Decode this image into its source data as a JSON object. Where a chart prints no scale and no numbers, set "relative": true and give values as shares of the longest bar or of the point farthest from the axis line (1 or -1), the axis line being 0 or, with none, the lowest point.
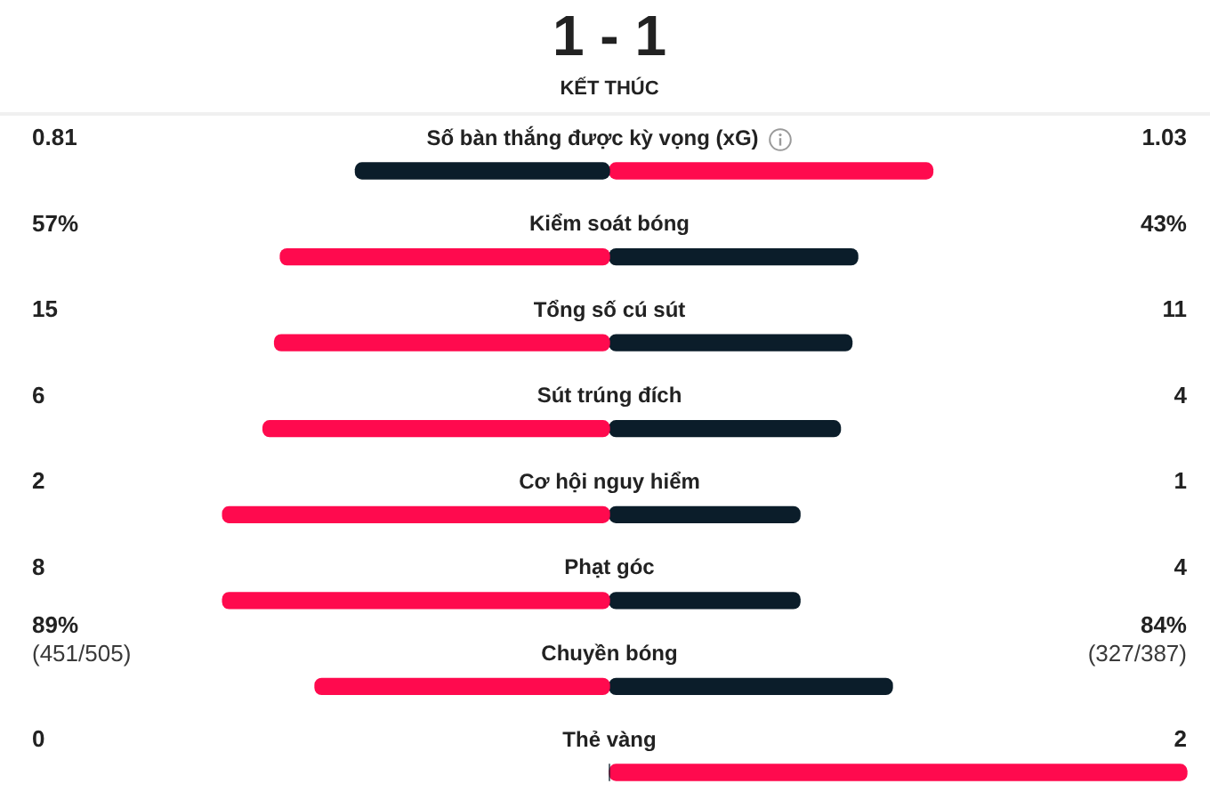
{
  "chart_data": {
    "type": "bar",
    "orientation": "horizontal",
    "relative": true,
    "stacked": true,
    "title": "1 - 1",
    "subtitle": "KẾT THÚC",
    "categories": [
      "Số bàn thắng được kỳ vọng (xG)",
      "Kiểm soát bóng",
      "Tổng số cú sút",
      "Sút trúng đích",
      "Cơ hội nguy hiểm",
      "Phạt góc",
      "Chuyền bóng",
      "Thẻ vàng"
    ],
    "series": [
      {
        "values": [
          -0.44,
          -0.57,
          -0.58,
          -0.6,
          -0.67,
          -0.67,
          -0.51,
          0
        ],
        "colors": [
          "#0b1d2a",
          "#ff0a4e",
          "#ff0a4e",
          "#ff0a4e",
          "#ff0a4e",
          "#ff0a4e",
          "#ff0a4e",
          "#0b1d2a"
        ]
      },
      {
        "values": [
          0.56,
          0.43,
          0.42,
          0.4,
          0.33,
          0.33,
          0.49,
          1
        ],
        "colors": [
          "#ff0a4e",
          "#0b1d2a",
          "#0b1d2a",
          "#0b1d2a",
          "#0b1d2a",
          "#0b1d2a",
          "#0b1d2a",
          "#ff0a4e"
        ]
      }
    ],
    "annotations": [
      "0.81",
      "1.03",
      "57%",
      "43%",
      "15",
      "11",
      "6",
      "4",
      "2",
      "1",
      "8",
      "4",
      "89%\n(451/505)",
      "84%\n(327/387)",
      "0",
      "2"
    ]
  }
}
